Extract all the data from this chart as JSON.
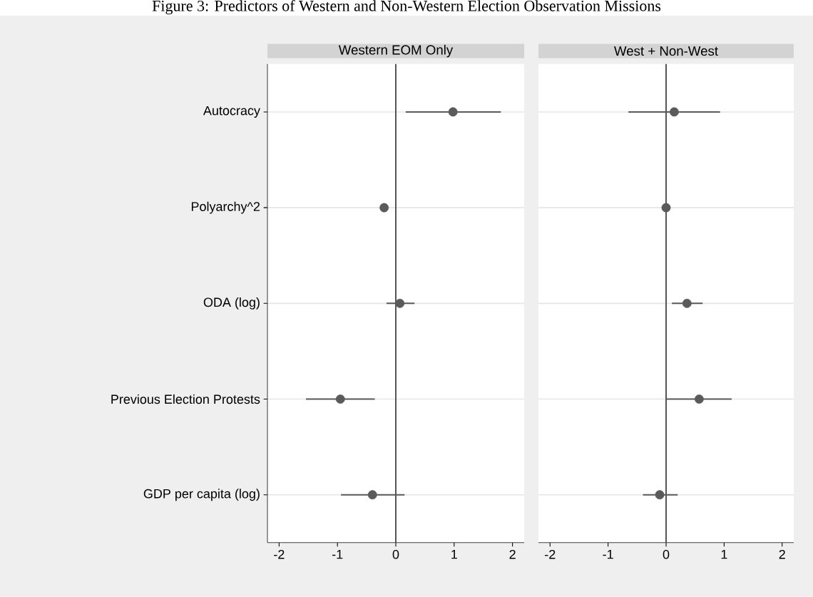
{
  "chart_data": [
    {
      "type": "scatter",
      "title": "Figure 3: Predictors of Western and Non-Western Election Observation Missions",
      "subtitle": "Western EOM Only",
      "orientation": "horizontal",
      "categories": [
        "Autocracy",
        "Polyarchy^2",
        "ODA (log)",
        "Previous Election Protests",
        "GDP per capita (log)"
      ],
      "values": [
        0.98,
        -0.2,
        0.07,
        -0.95,
        -0.4
      ],
      "errors": [
        [
          0.17,
          1.8
        ],
        null,
        [
          -0.16,
          0.32
        ],
        [
          -1.54,
          -0.36
        ],
        [
          -0.94,
          0.15
        ]
      ],
      "color": "#5a5a5a",
      "marker": "circle",
      "xlim": [
        -2.2,
        2.2
      ],
      "xticks": [
        -2,
        -1,
        0,
        1,
        2
      ],
      "grid": "y",
      "ref_lines": [
        {
          "axis": "x",
          "value": 0,
          "color": "#3c3c3c"
        }
      ]
    },
    {
      "type": "scatter",
      "subtitle": "West + Non-West",
      "orientation": "horizontal",
      "categories": [
        null,
        null,
        null,
        null,
        null
      ],
      "values": [
        0.14,
        0.0,
        0.36,
        0.57,
        -0.11
      ],
      "errors": [
        [
          -0.65,
          0.93
        ],
        null,
        [
          0.1,
          0.63
        ],
        [
          0.0,
          1.13
        ],
        [
          -0.4,
          0.2
        ]
      ],
      "color": "#5a5a5a",
      "marker": "circle",
      "xlim": [
        -2.2,
        2.2
      ],
      "xticks": [
        -2,
        -1,
        0,
        1,
        2
      ],
      "grid": "y",
      "tick_labels": "x",
      "ref_lines": [
        {
          "axis": "x",
          "value": 0,
          "color": "#3c3c3c"
        }
      ]
    }
  ]
}
